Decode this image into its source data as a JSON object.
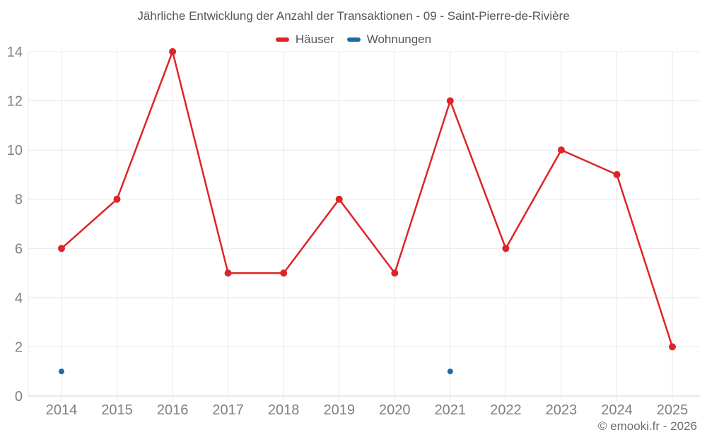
{
  "chart_data": {
    "type": "line",
    "title": "Jährliche Entwicklung der Anzahl der Transaktionen - 09 - Saint-Pierre-de-Rivière",
    "categories": [
      "2014",
      "2015",
      "2016",
      "2017",
      "2018",
      "2019",
      "2020",
      "2021",
      "2022",
      "2023",
      "2024",
      "2025"
    ],
    "series": [
      {
        "name": "Häuser",
        "color": "#de2426",
        "values": [
          6,
          8,
          14,
          5,
          5,
          8,
          5,
          12,
          6,
          10,
          9,
          2
        ],
        "point_radius": 5,
        "show_line": true,
        "line_width": 2.5
      },
      {
        "name": "Wohnungen",
        "color": "#1a6ca3",
        "values": [
          1,
          null,
          null,
          null,
          null,
          null,
          null,
          1,
          null,
          null,
          null,
          null
        ],
        "point_radius": 4,
        "show_line": false,
        "line_width": 2.5
      }
    ],
    "ylim": [
      0,
      14
    ],
    "yticks": [
      0,
      2,
      4,
      6,
      8,
      10,
      12,
      14
    ],
    "grid": true,
    "legend_position": "top",
    "xlabel": "",
    "ylabel": ""
  },
  "attribution": "© emooki.fr - 2026",
  "colors": {
    "grid": "#e8e8e8",
    "axis": "#d5d5d5",
    "tick_text": "#808080"
  }
}
